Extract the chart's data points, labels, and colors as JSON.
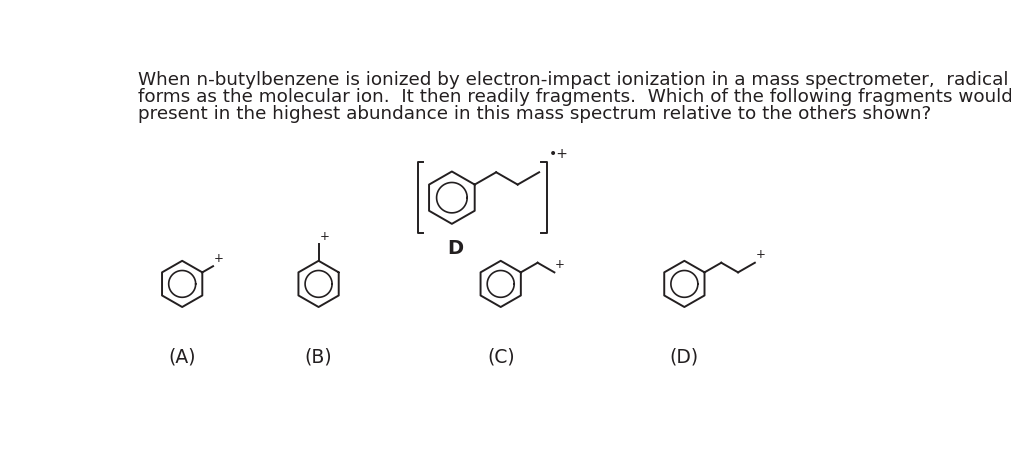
{
  "bg_color": "#ffffff",
  "text_color": "#231f20",
  "line_color": "#231f20",
  "question_text": [
    "When n-butylbenzene is ionized by electron-impact ionization in a mass spectrometer,  radical cation D initially",
    "forms as the molecular ion.  It then readily fragments.  Which of the following fragments would likely be",
    "present in the highest abundance in this mass spectrum relative to the others shown?"
  ],
  "labels": [
    "(A)",
    "(B)",
    "(C)",
    "(D)"
  ],
  "font_size_text": 13.2,
  "font_size_label": 13.5,
  "font_size_D": 14
}
